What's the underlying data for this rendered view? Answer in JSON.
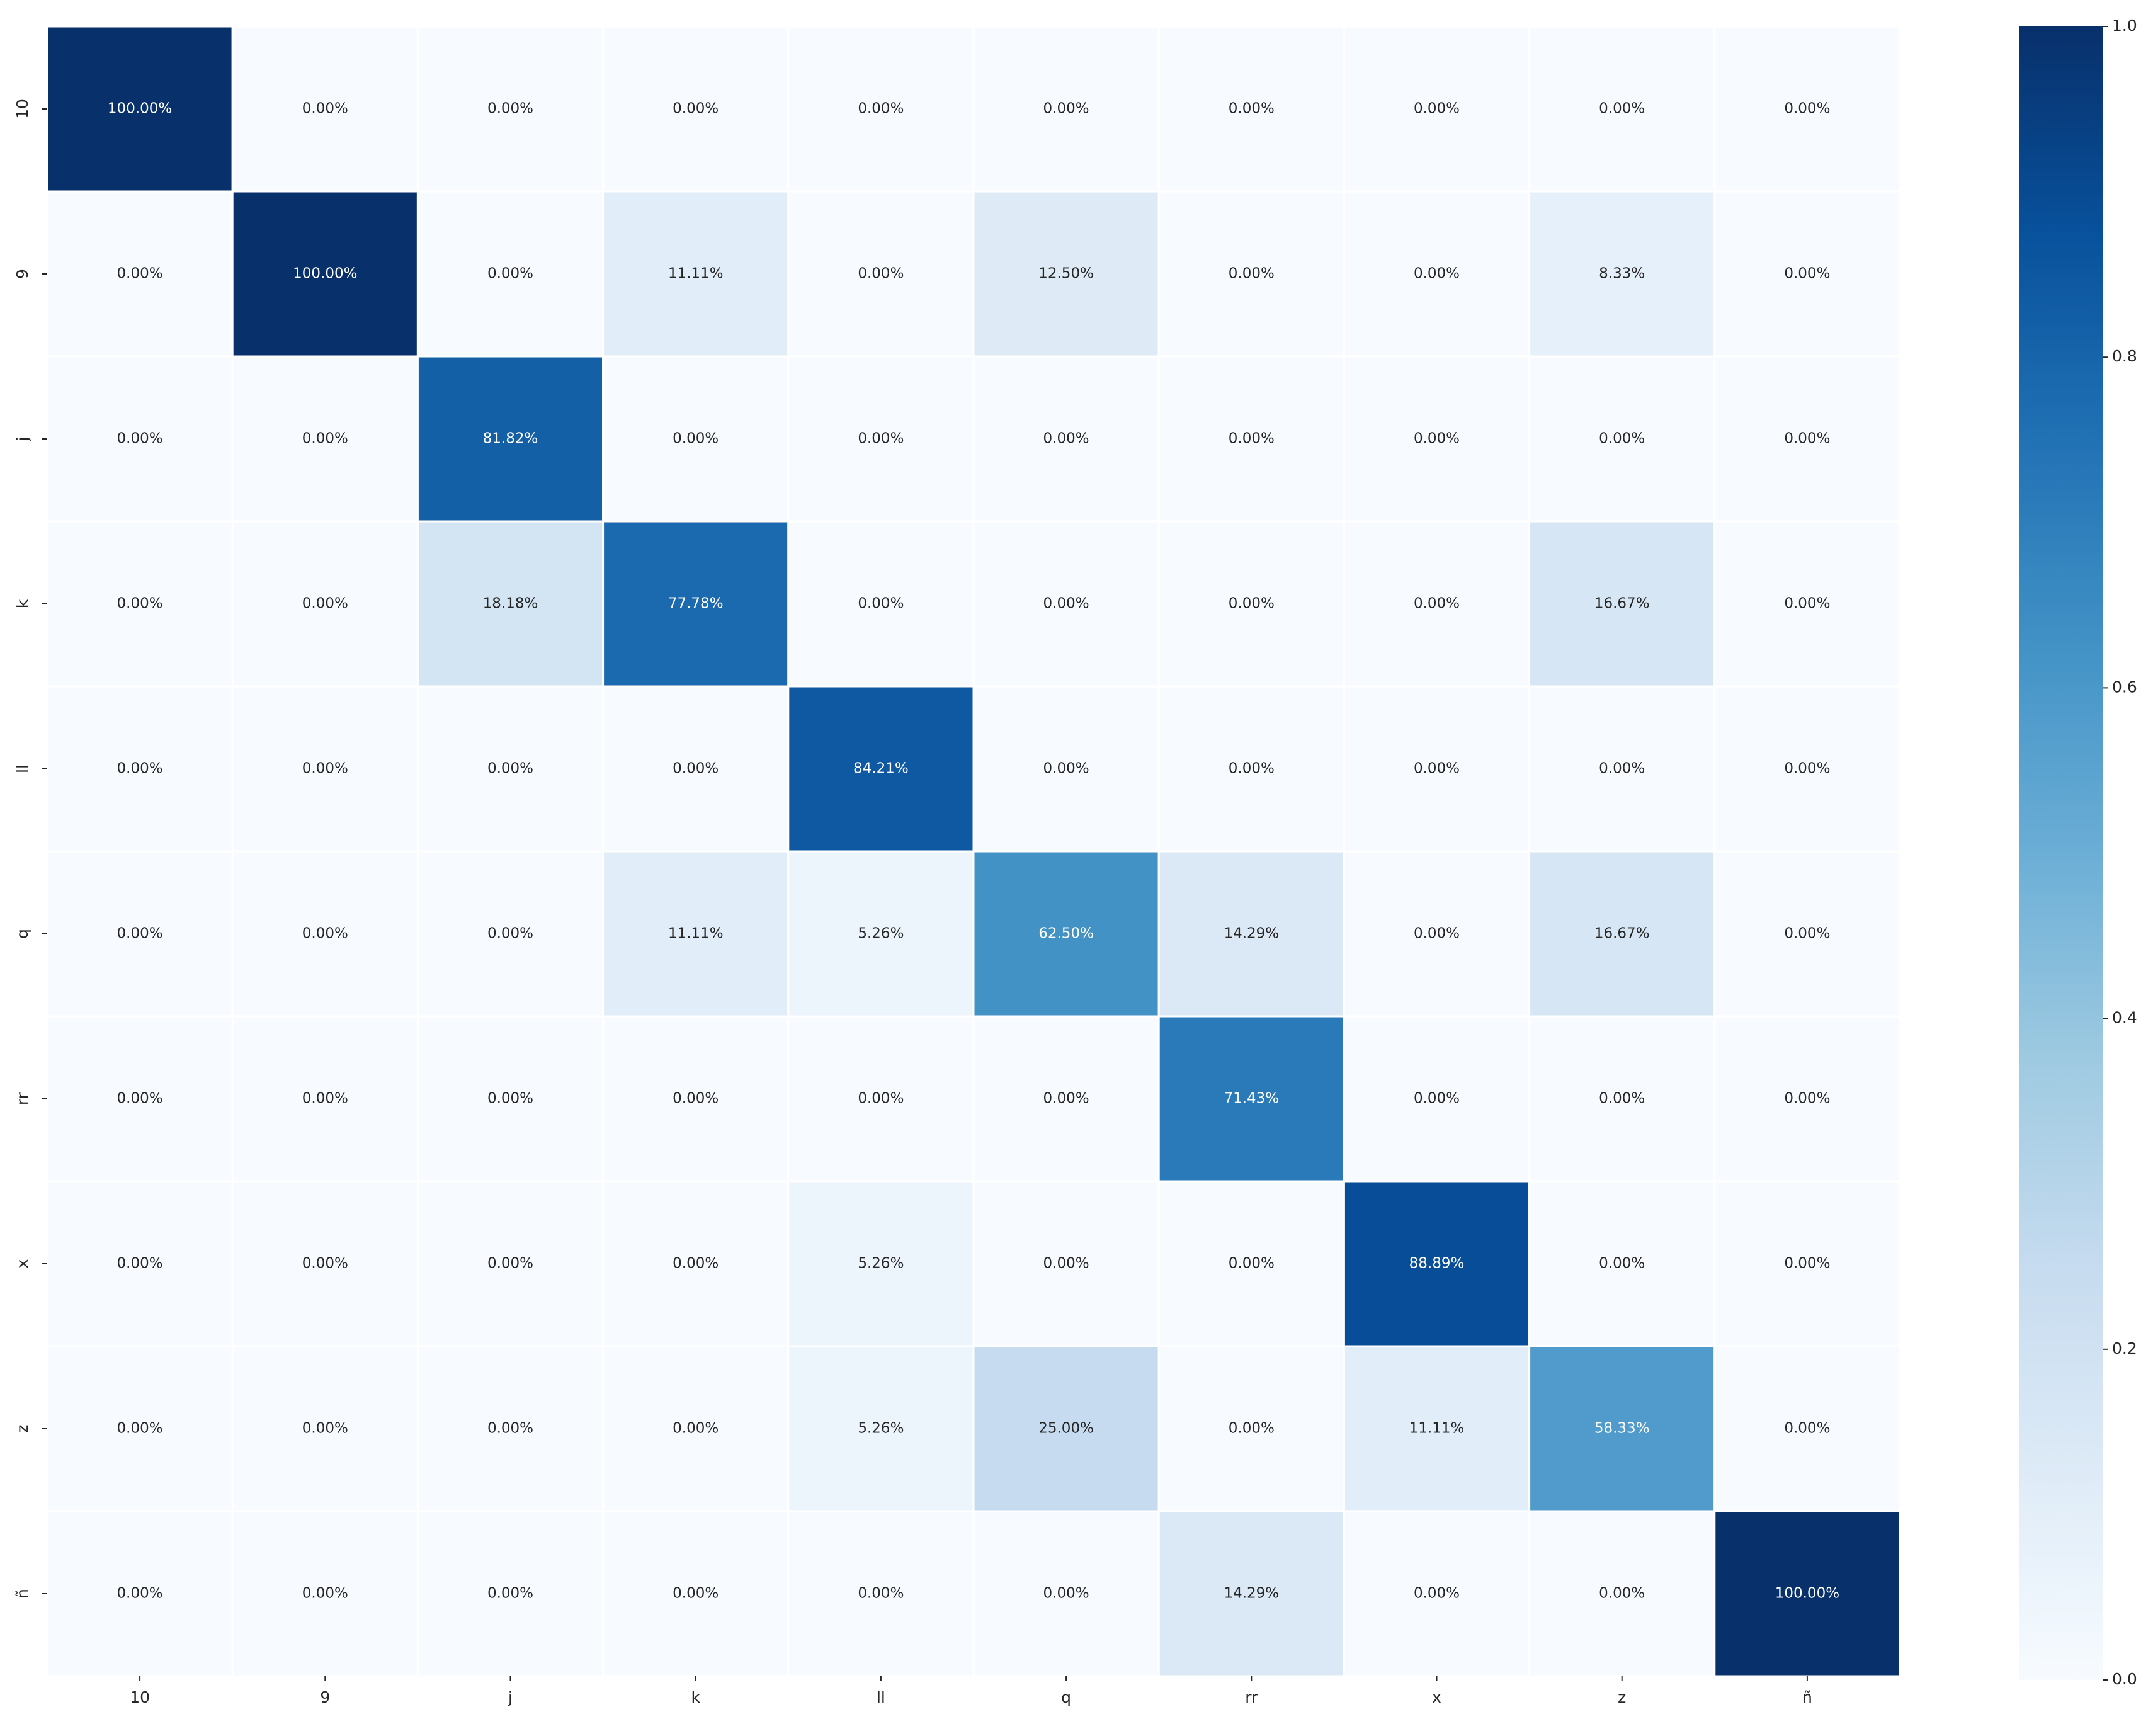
{
  "chart_data": {
    "type": "heatmap",
    "title": "",
    "xlabel": "",
    "ylabel": "",
    "x_labels": [
      "10",
      "9",
      "j",
      "k",
      "ll",
      "q",
      "rr",
      "x",
      "z",
      "ñ"
    ],
    "y_labels": [
      "10",
      "9",
      "j",
      "k",
      "ll",
      "q",
      "rr",
      "x",
      "z",
      "ñ"
    ],
    "values": [
      [
        1.0,
        0.0,
        0.0,
        0.0,
        0.0,
        0.0,
        0.0,
        0.0,
        0.0,
        0.0
      ],
      [
        0.0,
        1.0,
        0.0,
        0.1111,
        0.0,
        0.125,
        0.0,
        0.0,
        0.0833,
        0.0
      ],
      [
        0.0,
        0.0,
        0.8182,
        0.0,
        0.0,
        0.0,
        0.0,
        0.0,
        0.0,
        0.0
      ],
      [
        0.0,
        0.0,
        0.1818,
        0.7778,
        0.0,
        0.0,
        0.0,
        0.0,
        0.1667,
        0.0
      ],
      [
        0.0,
        0.0,
        0.0,
        0.0,
        0.8421,
        0.0,
        0.0,
        0.0,
        0.0,
        0.0
      ],
      [
        0.0,
        0.0,
        0.0,
        0.1111,
        0.0526,
        0.625,
        0.1429,
        0.0,
        0.1667,
        0.0
      ],
      [
        0.0,
        0.0,
        0.0,
        0.0,
        0.0,
        0.0,
        0.7143,
        0.0,
        0.0,
        0.0
      ],
      [
        0.0,
        0.0,
        0.0,
        0.0,
        0.0526,
        0.0,
        0.0,
        0.8889,
        0.0,
        0.0
      ],
      [
        0.0,
        0.0,
        0.0,
        0.0,
        0.0526,
        0.25,
        0.0,
        0.1111,
        0.5833,
        0.0
      ],
      [
        0.0,
        0.0,
        0.0,
        0.0,
        0.0,
        0.0,
        0.1429,
        0.0,
        0.0,
        1.0
      ]
    ],
    "cell_labels": [
      [
        "100.00%",
        "0.00%",
        "0.00%",
        "0.00%",
        "0.00%",
        "0.00%",
        "0.00%",
        "0.00%",
        "0.00%",
        "0.00%"
      ],
      [
        "0.00%",
        "100.00%",
        "0.00%",
        "11.11%",
        "0.00%",
        "12.50%",
        "0.00%",
        "0.00%",
        "8.33%",
        "0.00%"
      ],
      [
        "0.00%",
        "0.00%",
        "81.82%",
        "0.00%",
        "0.00%",
        "0.00%",
        "0.00%",
        "0.00%",
        "0.00%",
        "0.00%"
      ],
      [
        "0.00%",
        "0.00%",
        "18.18%",
        "77.78%",
        "0.00%",
        "0.00%",
        "0.00%",
        "0.00%",
        "16.67%",
        "0.00%"
      ],
      [
        "0.00%",
        "0.00%",
        "0.00%",
        "0.00%",
        "84.21%",
        "0.00%",
        "0.00%",
        "0.00%",
        "0.00%",
        "0.00%"
      ],
      [
        "0.00%",
        "0.00%",
        "0.00%",
        "11.11%",
        "5.26%",
        "62.50%",
        "14.29%",
        "0.00%",
        "16.67%",
        "0.00%"
      ],
      [
        "0.00%",
        "0.00%",
        "0.00%",
        "0.00%",
        "0.00%",
        "0.00%",
        "71.43%",
        "0.00%",
        "0.00%",
        "0.00%"
      ],
      [
        "0.00%",
        "0.00%",
        "0.00%",
        "0.00%",
        "5.26%",
        "0.00%",
        "0.00%",
        "88.89%",
        "0.00%",
        "0.00%"
      ],
      [
        "0.00%",
        "0.00%",
        "0.00%",
        "0.00%",
        "5.26%",
        "25.00%",
        "0.00%",
        "11.11%",
        "58.33%",
        "0.00%"
      ],
      [
        "0.00%",
        "0.00%",
        "0.00%",
        "0.00%",
        "0.00%",
        "0.00%",
        "14.29%",
        "0.00%",
        "0.00%",
        "100.00%"
      ]
    ],
    "colorbar": {
      "range": [
        0.0,
        1.0
      ],
      "ticks": [
        "0.0",
        "0.2",
        "0.4",
        "0.6",
        "0.8",
        "1.0"
      ],
      "colormap": "Blues",
      "position": "right"
    },
    "grid": false,
    "legend": "none"
  },
  "colors": {
    "cmap_stops": [
      "#f7fbff",
      "#deebf7",
      "#c6dbef",
      "#9ecae1",
      "#6baed6",
      "#4292c6",
      "#2171b5",
      "#08519c",
      "#08306b"
    ],
    "cell_border": "#ffffff",
    "text_light": "#ffffff",
    "text_dark": "#262626"
  }
}
